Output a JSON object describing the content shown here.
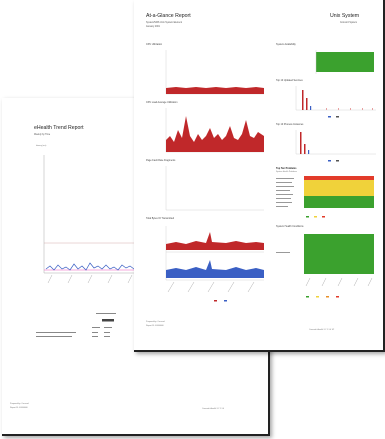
{
  "back_report": {
    "title": "eHealth Trend Report",
    "subtitle": "Weekly by Time",
    "chart_label": "latency (ms)",
    "footer_left_1": "Prepared by: Concord",
    "footer_left_2": "Report ID: 00000000",
    "footer_right": "Concord eHealth 5.7.1.1.0"
  },
  "front_report": {
    "title": "At-a-Glance Report",
    "subtitle_1": "System/NMS Unix System Element",
    "subtitle_2": "January 2001",
    "header_right_title": "Unix System",
    "header_right_sub": "Concord System",
    "left_panels": [
      {
        "title": "CPU Utilization"
      },
      {
        "title": "CPU Load Average Utilization"
      },
      {
        "title": "Page Fault Rate Fragments"
      },
      {
        "title": "Total Bytes IO Transmitted"
      }
    ],
    "right_panels": [
      {
        "title": "System Availability"
      },
      {
        "title": "Top 10 Updated Services"
      },
      {
        "title": "Top 10 Process Instances"
      },
      {
        "title": "Top Ten Problems",
        "subtitle": "System Health Problems"
      },
      {
        "title": "System Health Conditions"
      }
    ],
    "footer_left_1": "Prepared by: Concord",
    "footer_left_2": "Report ID: 00000000",
    "footer_right": "Concord eHealth 5.7.1.1.0 1/2"
  },
  "colors": {
    "red_series": "#c0282a",
    "blue_series": "#3a5fc4",
    "green_status": "#3ba12e",
    "yellow_status": "#f0d23a",
    "red_status": "#e23b2a"
  }
}
